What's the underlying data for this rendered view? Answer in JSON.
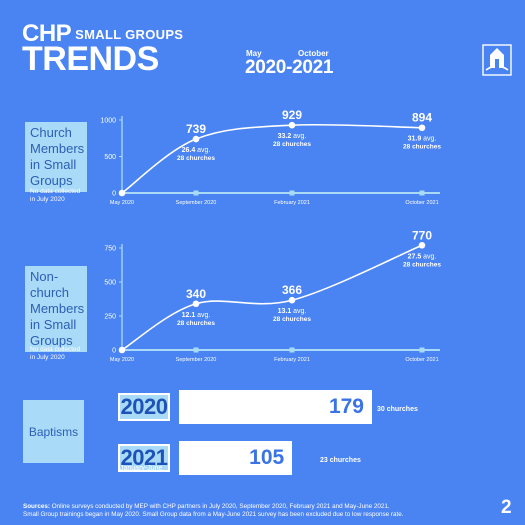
{
  "header": {
    "brand": "CHP",
    "subtitle": "SMALL GROUPS",
    "title": "TRENDS",
    "start_month": "May",
    "end_month": "October",
    "years": "2020-2021",
    "logo_icon": "church-logo-icon"
  },
  "colors": {
    "background": "#4a83f2",
    "label_box": "#a9daf8",
    "line": "#ffffff"
  },
  "chart_data": [
    {
      "type": "line",
      "label": "Church Members in Small Groups",
      "note": "No data collected in July 2020",
      "x": [
        "May 2020",
        "September 2020",
        "February 2021",
        "October 2021"
      ],
      "values": [
        0,
        739,
        929,
        894
      ],
      "value_labels": [
        "",
        "739",
        "929",
        "894"
      ],
      "avg_labels": [
        "",
        "26.4",
        "33.2",
        "31.9"
      ],
      "avg_suffix": "avg.",
      "church_labels": [
        "",
        "28 churches",
        "28 churches",
        "28 churches"
      ],
      "yticks": [
        0,
        500,
        1000
      ],
      "ylim": [
        0,
        1000
      ]
    },
    {
      "type": "line",
      "label": "Non-church Members in Small Groups",
      "note": "No data collected in July 2020",
      "x": [
        "May 2020",
        "September 2020",
        "February 2021",
        "October 2021"
      ],
      "values": [
        0,
        340,
        366,
        770
      ],
      "value_labels": [
        "",
        "340",
        "366",
        "770"
      ],
      "avg_labels": [
        "",
        "12.1",
        "13.1",
        "27.5"
      ],
      "avg_suffix": "avg.",
      "church_labels": [
        "",
        "28 churches",
        "28 churches",
        "28 churches"
      ],
      "yticks": [
        0,
        250,
        500,
        750
      ],
      "ylim": [
        0,
        750
      ]
    },
    {
      "type": "bar",
      "label": "Baptisms",
      "categories": [
        "2020",
        "2021"
      ],
      "category_notes": [
        "",
        "January-June"
      ],
      "values": [
        179,
        105
      ],
      "churches": [
        "30 churches",
        "23 churches"
      ]
    }
  ],
  "footer": {
    "sources_label": "Sources:",
    "sources_text": " Online surveys conducted by MEP with CHP partners in July 2020, September 2020, February 2021 and May-June 2021.",
    "line2": "Small Group trainings began in May 2020. Small Group data from a May-June 2021 survey has been excluded due to low response rate.",
    "page_number": "2"
  }
}
